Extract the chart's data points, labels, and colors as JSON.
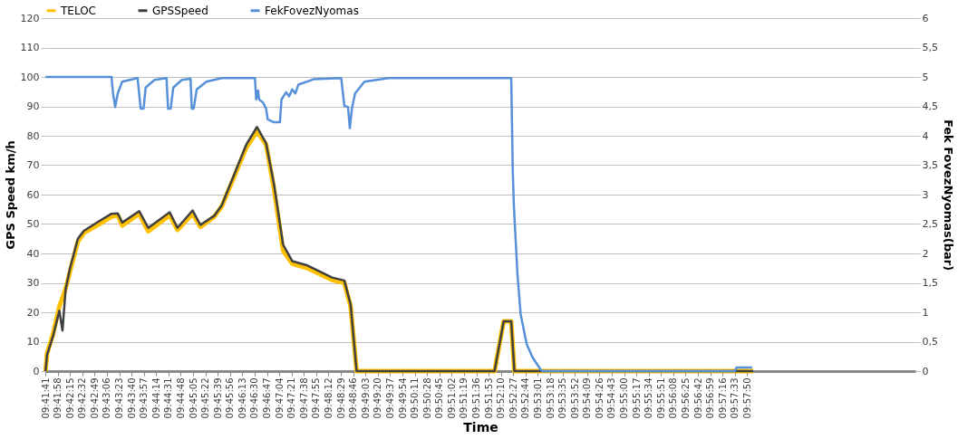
{
  "chart_data": {
    "type": "line",
    "xlabel": "Time",
    "ylabel": "GPS Speed km/h",
    "y2label": "Fek FovezNyomas(bar)",
    "xlim": [
      9.69472,
      10.0284
    ],
    "ylim": [
      0,
      120
    ],
    "yticks": [
      0,
      10,
      20,
      30,
      40,
      50,
      60,
      70,
      80,
      90,
      100,
      110,
      120
    ],
    "y2lim": [
      0,
      6
    ],
    "y2ticks": [
      0,
      {
        "value": 0.5,
        "label": "0,5"
      },
      1,
      {
        "value": 1.5,
        "label": "1,5"
      },
      2,
      {
        "value": 2.5,
        "label": "2,5"
      },
      3,
      {
        "value": 3.5,
        "label": "3,5"
      },
      4,
      {
        "value": 4.5,
        "label": "4,5"
      },
      5,
      {
        "value": 5.5,
        "label": "5,5"
      },
      6
    ],
    "xticks": [
      {
        "value": 9.69472,
        "label": "09:41:41"
      },
      {
        "value": 9.69944,
        "label": "09:41:58"
      },
      {
        "value": 9.70417,
        "label": "09:42:15"
      },
      {
        "value": 9.70889,
        "label": "09:42:32"
      },
      {
        "value": 9.71361,
        "label": "09:42:49"
      },
      {
        "value": 9.71833,
        "label": "09:43:06"
      },
      {
        "value": 9.72306,
        "label": "09:43:23"
      },
      {
        "value": 9.72778,
        "label": "09:43:40"
      },
      {
        "value": 9.7325,
        "label": "09:43:57"
      },
      {
        "value": 9.73722,
        "label": "09:44:14"
      },
      {
        "value": 9.74194,
        "label": "09:44:31"
      },
      {
        "value": 9.74667,
        "label": "09:44:48"
      },
      {
        "value": 9.75139,
        "label": "09:45:05"
      },
      {
        "value": 9.75611,
        "label": "09:45:22"
      },
      {
        "value": 9.76083,
        "label": "09:45:39"
      },
      {
        "value": 9.76556,
        "label": "09:45:56"
      },
      {
        "value": 9.77028,
        "label": "09:46:13"
      },
      {
        "value": 9.775,
        "label": "09:46:30"
      },
      {
        "value": 9.77972,
        "label": "09:46:47"
      },
      {
        "value": 9.78444,
        "label": "09:47:04"
      },
      {
        "value": 9.78917,
        "label": "09:47:21"
      },
      {
        "value": 9.79389,
        "label": "09:47:38"
      },
      {
        "value": 9.79861,
        "label": "09:47:55"
      },
      {
        "value": 9.80333,
        "label": "09:48:12"
      },
      {
        "value": 9.80806,
        "label": "09:48:29"
      },
      {
        "value": 9.81278,
        "label": "09:48:46"
      },
      {
        "value": 9.8175,
        "label": "09:49:03"
      },
      {
        "value": 9.82222,
        "label": "09:49:20"
      },
      {
        "value": 9.82694,
        "label": "09:49:37"
      },
      {
        "value": 9.83167,
        "label": "09:49:54"
      },
      {
        "value": 9.83639,
        "label": "09:50:11"
      },
      {
        "value": 9.84111,
        "label": "09:50:28"
      },
      {
        "value": 9.84583,
        "label": "09:50:45"
      },
      {
        "value": 9.85056,
        "label": "09:51:02"
      },
      {
        "value": 9.85528,
        "label": "09:51:19"
      },
      {
        "value": 9.86,
        "label": "09:51:36"
      },
      {
        "value": 9.86472,
        "label": "09:51:53"
      },
      {
        "value": 9.86944,
        "label": "09:52:10"
      },
      {
        "value": 9.87417,
        "label": "09:52:27"
      },
      {
        "value": 9.87889,
        "label": "09:52:44"
      },
      {
        "value": 9.88361,
        "label": "09:53:01"
      },
      {
        "value": 9.88833,
        "label": "09:53:18"
      },
      {
        "value": 9.89306,
        "label": "09:53:35"
      },
      {
        "value": 9.89778,
        "label": "09:53:52"
      },
      {
        "value": 9.9025,
        "label": "09:54:09"
      },
      {
        "value": 9.90722,
        "label": "09:54:26"
      },
      {
        "value": 9.91194,
        "label": "09:54:43"
      },
      {
        "value": 9.91667,
        "label": "09:55:00"
      },
      {
        "value": 9.92139,
        "label": "09:55:17"
      },
      {
        "value": 9.92611,
        "label": "09:55:34"
      },
      {
        "value": 9.93083,
        "label": "09:55:51"
      },
      {
        "value": 9.93556,
        "label": "09:56:08"
      },
      {
        "value": 9.94028,
        "label": "09:56:25"
      },
      {
        "value": 9.945,
        "label": "09:56:42"
      },
      {
        "value": 9.94972,
        "label": "09:56:59"
      },
      {
        "value": 9.95444,
        "label": "09:57:16"
      },
      {
        "value": 9.95917,
        "label": "09:57:33"
      },
      {
        "value": 9.96389,
        "label": "09:57:50"
      }
    ],
    "grid": "y",
    "legend": "top",
    "line_style": "solid",
    "marker": "none",
    "series": [
      {
        "name": "TELOC",
        "color": "#ffc000",
        "x": [
          9.6948,
          9.6954,
          9.6978,
          9.7001,
          9.7013,
          9.7025,
          9.7042,
          9.7072,
          9.7095,
          9.7154,
          9.7201,
          9.7225,
          9.7242,
          9.7307,
          9.7342,
          9.7424,
          9.7454,
          9.7512,
          9.7542,
          9.7595,
          9.7624,
          9.7671,
          9.7718,
          9.7759,
          9.7794,
          9.7824,
          9.7859,
          9.7894,
          9.7953,
          9.8047,
          9.8094,
          9.8118,
          9.8141,
          9.867,
          9.8705,
          9.8734,
          9.8746,
          9.9662
        ],
        "values": [
          0,
          6,
          13,
          22,
          25,
          28,
          34,
          44,
          47,
          50,
          52.5,
          53,
          49.5,
          53.5,
          47.5,
          53,
          48,
          53.5,
          49,
          52.5,
          56,
          66,
          76,
          81.5,
          77,
          62,
          41,
          36.5,
          35,
          31,
          30,
          22,
          0,
          0,
          16.9,
          16.9,
          0,
          0
        ]
      },
      {
        "name": "GPSSpeed",
        "color": "#404040",
        "x": [
          9.6948,
          9.6954,
          9.6978,
          9.7001,
          9.7013,
          9.7025,
          9.7042,
          9.7072,
          9.7095,
          9.7154,
          9.7201,
          9.7225,
          9.7242,
          9.7307,
          9.7342,
          9.7424,
          9.7454,
          9.7512,
          9.7542,
          9.7595,
          9.7624,
          9.7671,
          9.7718,
          9.7759,
          9.7794,
          9.7824,
          9.7859,
          9.7894,
          9.7953,
          9.8047,
          9.8094,
          9.8118,
          9.8141,
          9.867,
          9.8705,
          9.8734,
          9.8746,
          9.9662
        ],
        "values": [
          0,
          5.6,
          12.3,
          20.5,
          13.8,
          27.7,
          35,
          45,
          47.7,
          51,
          53.5,
          53.6,
          50.5,
          54.4,
          48.7,
          54,
          48.7,
          54.6,
          49.7,
          52.8,
          56.4,
          66.7,
          77,
          83,
          77.4,
          63.6,
          43,
          37.4,
          35.9,
          31.8,
          30.8,
          22.6,
          0,
          0,
          16.9,
          16.9,
          0,
          0
        ]
      },
      {
        "name": "FekFovezNyomas",
        "color": "#5590d8",
        "axis": "y2",
        "x": [
          9.6948,
          9.7201,
          9.7207,
          9.7215,
          9.7225,
          9.7242,
          9.7301,
          9.7313,
          9.7324,
          9.7332,
          9.7366,
          9.7412,
          9.7418,
          9.7428,
          9.7438,
          9.7471,
          9.7504,
          9.7509,
          9.7516,
          9.7528,
          9.7565,
          9.7624,
          9.7751,
          9.7756,
          9.7763,
          9.7767,
          9.7783,
          9.7794,
          9.78,
          9.7824,
          9.7847,
          9.7853,
          9.7871,
          9.7882,
          9.7894,
          9.7906,
          9.7918,
          9.7976,
          9.8082,
          9.8094,
          9.8108,
          9.8115,
          9.8123,
          9.8135,
          9.8153,
          9.8171,
          9.8264,
          9.8734,
          9.874,
          9.8744,
          9.8758,
          9.877,
          9.8793,
          9.8816,
          9.8846,
          9.8854,
          9.9591,
          9.9598,
          9.9658
        ],
        "values": [
          5,
          5,
          4.72,
          4.49,
          4.72,
          4.92,
          4.98,
          4.46,
          4.46,
          4.82,
          4.95,
          4.98,
          4.46,
          4.46,
          4.82,
          4.95,
          4.97,
          4.46,
          4.46,
          4.79,
          4.92,
          4.98,
          4.98,
          4.62,
          4.77,
          4.62,
          4.56,
          4.46,
          4.28,
          4.23,
          4.23,
          4.62,
          4.74,
          4.67,
          4.79,
          4.72,
          4.87,
          4.96,
          4.98,
          4.51,
          4.49,
          4.13,
          4.46,
          4.72,
          4.82,
          4.92,
          4.98,
          4.98,
          3.38,
          2.82,
          1.64,
          0.97,
          0.46,
          0.23,
          0.03,
          0,
          0,
          0.06,
          0.06
        ]
      }
    ]
  }
}
